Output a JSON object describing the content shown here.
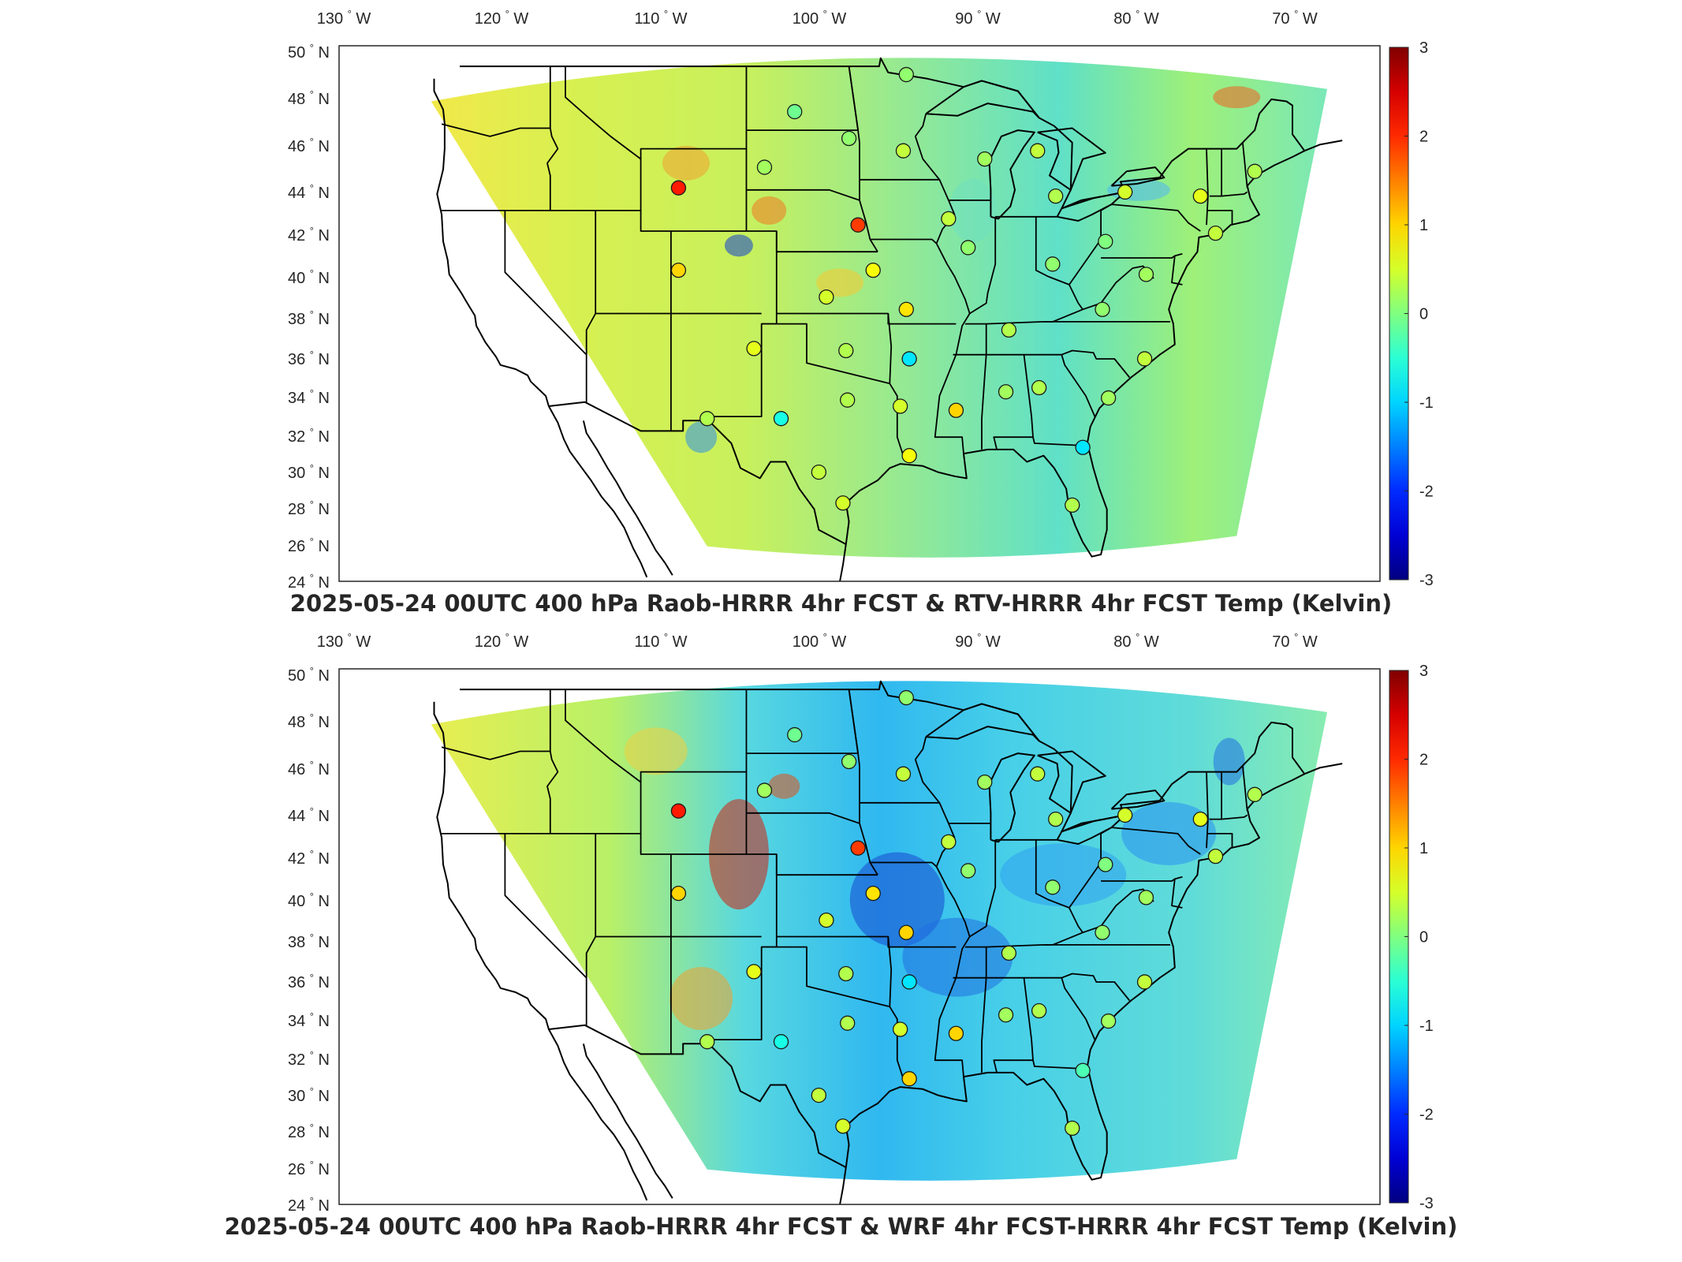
{
  "lon_ticks": [
    "130",
    "120",
    "110",
    "100",
    "90",
    "80",
    "70"
  ],
  "lon_suffix": "W",
  "lat_ticks": [
    "50",
    "48",
    "46",
    "44",
    "42",
    "40",
    "38",
    "36",
    "34",
    "32",
    "30",
    "28",
    "26",
    "24"
  ],
  "lat_suffix": "N",
  "degree_symbol": "°",
  "colorbar": {
    "ticks": [
      "3",
      "2",
      "1",
      "0",
      "-1",
      "-2",
      "-3"
    ],
    "colormap": "jet",
    "range": [
      -3,
      3
    ]
  },
  "panels": [
    {
      "title": "2025-05-24 00UTC 400 hPa Raob-HRRR 4hr FCST & RTV-HRRR 4hr FCST Temp (Kelvin)",
      "field_tone": "warm-neutral",
      "raob_points": [
        {
          "lon": -108.5,
          "lat": 43.1,
          "value": 2.1
        },
        {
          "lon": -108.5,
          "lat": 39.1,
          "value": 1.0
        },
        {
          "lon": -103.5,
          "lat": 35.3,
          "value": 0.6
        },
        {
          "lon": -106.6,
          "lat": 31.9,
          "value": 0.3
        },
        {
          "lon": -101.7,
          "lat": 31.9,
          "value": -0.6
        },
        {
          "lon": -102.8,
          "lat": 44.1,
          "value": 0.2
        },
        {
          "lon": -100.8,
          "lat": 46.8,
          "value": -0.1
        },
        {
          "lon": -97.2,
          "lat": 45.5,
          "value": 0.1
        },
        {
          "lon": -96.6,
          "lat": 41.3,
          "value": 1.9
        },
        {
          "lon": -95.6,
          "lat": 39.1,
          "value": 0.7
        },
        {
          "lon": -98.7,
          "lat": 37.8,
          "value": 0.5
        },
        {
          "lon": -93.4,
          "lat": 37.2,
          "value": 0.9
        },
        {
          "lon": -97.4,
          "lat": 35.2,
          "value": 0.3
        },
        {
          "lon": -93.2,
          "lat": 34.8,
          "value": -0.9
        },
        {
          "lon": -97.3,
          "lat": 32.8,
          "value": 0.3
        },
        {
          "lon": -99.2,
          "lat": 29.3,
          "value": 0.4
        },
        {
          "lon": -97.6,
          "lat": 27.8,
          "value": 0.5
        },
        {
          "lon": -93.2,
          "lat": 30.1,
          "value": 0.7
        },
        {
          "lon": -93.8,
          "lat": 32.5,
          "value": 0.5
        },
        {
          "lon": -90.1,
          "lat": 32.3,
          "value": 1.0
        },
        {
          "lon": -86.8,
          "lat": 33.2,
          "value": 0.2
        },
        {
          "lon": -84.6,
          "lat": 33.4,
          "value": 0.3
        },
        {
          "lon": -81.7,
          "lat": 30.5,
          "value": -0.9
        },
        {
          "lon": -82.4,
          "lat": 27.7,
          "value": 0.3
        },
        {
          "lon": -80.0,
          "lat": 32.9,
          "value": 0.2
        },
        {
          "lon": -77.6,
          "lat": 34.8,
          "value": 0.4
        },
        {
          "lon": -86.6,
          "lat": 36.2,
          "value": 0.3
        },
        {
          "lon": -80.4,
          "lat": 37.2,
          "value": 0.1
        },
        {
          "lon": -77.5,
          "lat": 38.9,
          "value": 0.2
        },
        {
          "lon": -80.2,
          "lat": 40.5,
          "value": 0.0
        },
        {
          "lon": -83.7,
          "lat": 39.4,
          "value": 0.1
        },
        {
          "lon": -89.3,
          "lat": 40.2,
          "value": 0.1
        },
        {
          "lon": -90.6,
          "lat": 41.6,
          "value": 0.4
        },
        {
          "lon": -93.6,
          "lat": 44.9,
          "value": 0.4
        },
        {
          "lon": -93.4,
          "lat": 48.6,
          "value": 0.1
        },
        {
          "lon": -88.2,
          "lat": 44.5,
          "value": 0.2
        },
        {
          "lon": -84.7,
          "lat": 44.9,
          "value": 0.4
        },
        {
          "lon": -83.5,
          "lat": 42.7,
          "value": 0.3
        },
        {
          "lon": -78.9,
          "lat": 42.9,
          "value": 0.5
        },
        {
          "lon": -73.9,
          "lat": 42.7,
          "value": 0.6
        },
        {
          "lon": -72.9,
          "lat": 40.9,
          "value": 0.4
        },
        {
          "lon": -70.3,
          "lat": 43.9,
          "value": 0.3
        }
      ]
    },
    {
      "title": "2025-05-24 00UTC 400 hPa Raob-HRRR 4hr FCST & WRF 4hr FCST-HRRR 4hr FCST Temp (Kelvin)",
      "field_tone": "cool-east warm-west",
      "raob_points": [
        {
          "lon": -108.5,
          "lat": 43.1,
          "value": 2.1
        },
        {
          "lon": -108.5,
          "lat": 39.1,
          "value": 1.0
        },
        {
          "lon": -103.5,
          "lat": 35.3,
          "value": 0.6
        },
        {
          "lon": -106.6,
          "lat": 31.9,
          "value": 0.3
        },
        {
          "lon": -101.7,
          "lat": 31.9,
          "value": -0.6
        },
        {
          "lon": -102.8,
          "lat": 44.1,
          "value": 0.2
        },
        {
          "lon": -100.8,
          "lat": 46.8,
          "value": -0.1
        },
        {
          "lon": -97.2,
          "lat": 45.5,
          "value": 0.1
        },
        {
          "lon": -96.6,
          "lat": 41.3,
          "value": 1.9
        },
        {
          "lon": -95.6,
          "lat": 39.1,
          "value": 0.9
        },
        {
          "lon": -98.7,
          "lat": 37.8,
          "value": 0.5
        },
        {
          "lon": -93.4,
          "lat": 37.2,
          "value": 1.0
        },
        {
          "lon": -97.4,
          "lat": 35.2,
          "value": 0.3
        },
        {
          "lon": -93.2,
          "lat": 34.8,
          "value": -0.9
        },
        {
          "lon": -97.3,
          "lat": 32.8,
          "value": 0.3
        },
        {
          "lon": -99.2,
          "lat": 29.3,
          "value": 0.4
        },
        {
          "lon": -97.6,
          "lat": 27.8,
          "value": 0.5
        },
        {
          "lon": -93.2,
          "lat": 30.1,
          "value": 1.0
        },
        {
          "lon": -93.8,
          "lat": 32.5,
          "value": 0.5
        },
        {
          "lon": -90.1,
          "lat": 32.3,
          "value": 1.0
        },
        {
          "lon": -86.8,
          "lat": 33.2,
          "value": 0.2
        },
        {
          "lon": -84.6,
          "lat": 33.4,
          "value": 0.3
        },
        {
          "lon": -81.7,
          "lat": 30.5,
          "value": -0.3
        },
        {
          "lon": -82.4,
          "lat": 27.7,
          "value": 0.3
        },
        {
          "lon": -80.0,
          "lat": 32.9,
          "value": 0.2
        },
        {
          "lon": -77.6,
          "lat": 34.8,
          "value": 0.4
        },
        {
          "lon": -86.6,
          "lat": 36.2,
          "value": 0.3
        },
        {
          "lon": -80.4,
          "lat": 37.2,
          "value": 0.1
        },
        {
          "lon": -77.5,
          "lat": 38.9,
          "value": 0.2
        },
        {
          "lon": -80.2,
          "lat": 40.5,
          "value": 0.0
        },
        {
          "lon": -83.7,
          "lat": 39.4,
          "value": 0.1
        },
        {
          "lon": -89.3,
          "lat": 40.2,
          "value": 0.1
        },
        {
          "lon": -90.6,
          "lat": 41.6,
          "value": 0.4
        },
        {
          "lon": -93.6,
          "lat": 44.9,
          "value": 0.4
        },
        {
          "lon": -93.4,
          "lat": 48.6,
          "value": 0.1
        },
        {
          "lon": -88.2,
          "lat": 44.5,
          "value": 0.2
        },
        {
          "lon": -84.7,
          "lat": 44.9,
          "value": 0.4
        },
        {
          "lon": -83.5,
          "lat": 42.7,
          "value": 0.3
        },
        {
          "lon": -78.9,
          "lat": 42.9,
          "value": 0.5
        },
        {
          "lon": -73.9,
          "lat": 42.7,
          "value": 0.6
        },
        {
          "lon": -72.9,
          "lat": 40.9,
          "value": 0.4
        },
        {
          "lon": -70.3,
          "lat": 43.9,
          "value": 0.3
        }
      ]
    }
  ]
}
